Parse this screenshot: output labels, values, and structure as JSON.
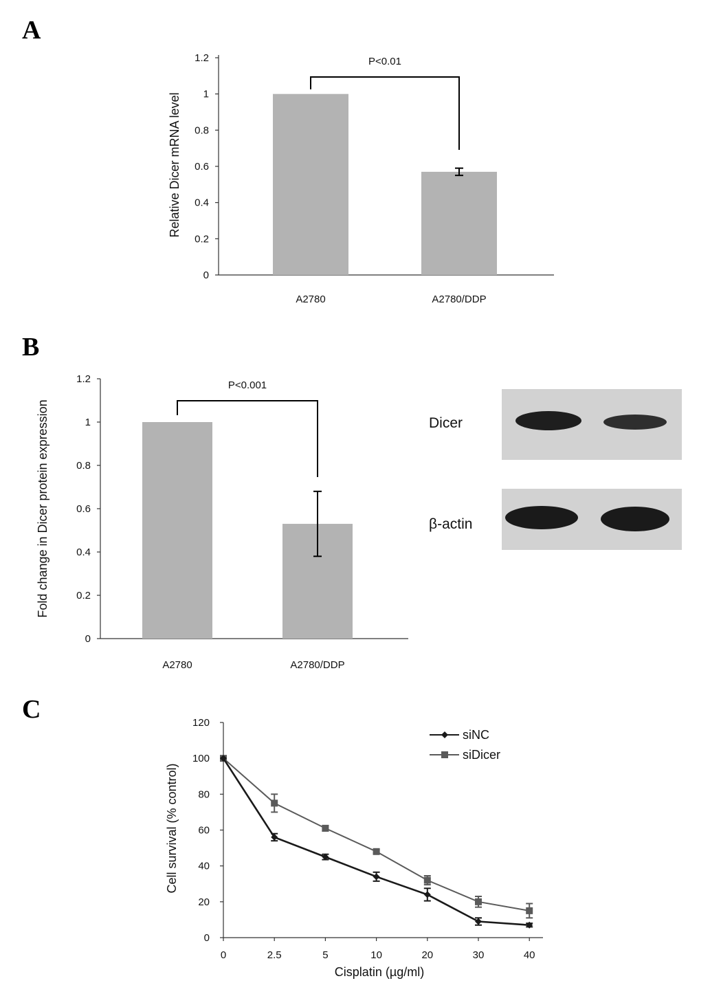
{
  "panels": {
    "a": "A",
    "b": "B",
    "c": "C"
  },
  "colors": {
    "bar": "#b3b3b3",
    "siNC": "#1a1a1a",
    "siDicer": "#5a5a5a",
    "blot_bg": "#d2d2d2",
    "band": "#1e1e1e"
  },
  "blot": {
    "labels": [
      "Dicer",
      "β-actin"
    ]
  },
  "chart_data": [
    {
      "type": "bar",
      "categories": [
        "A2780",
        "A2780/DDP"
      ],
      "values": [
        1.0,
        0.57
      ],
      "errors": [
        0,
        0.02
      ],
      "ylabel": "Relative Dicer mRNA level",
      "xlabel": "",
      "ylim": [
        0,
        1.2
      ],
      "yticks": [
        "0",
        "0.2",
        "0.4",
        "0.6",
        "0.8",
        "1",
        "1.2"
      ],
      "annotation": "P<0.01"
    },
    {
      "type": "bar",
      "categories": [
        "A2780",
        "A2780/DDP"
      ],
      "values": [
        1.0,
        0.53
      ],
      "errors": [
        0,
        0.15
      ],
      "ylabel": "Fold change in Dicer protein expression",
      "xlabel": "",
      "ylim": [
        0,
        1.2
      ],
      "yticks": [
        "0",
        "0.2",
        "0.4",
        "0.6",
        "0.8",
        "1",
        "1.2"
      ],
      "annotation": "P<0.001"
    },
    {
      "type": "line",
      "x": [
        "0",
        "2.5",
        "5",
        "10",
        "20",
        "30",
        "40"
      ],
      "series": [
        {
          "name": "siNC",
          "values": [
            100,
            56,
            45,
            34,
            24,
            9,
            7
          ],
          "errors": [
            0,
            2,
            1.5,
            2.5,
            3.5,
            2,
            1
          ],
          "marker": "diamond"
        },
        {
          "name": "siDicer",
          "values": [
            100,
            75,
            61,
            48,
            32,
            20,
            15
          ],
          "errors": [
            0,
            5,
            1.5,
            1,
            2.5,
            3,
            4
          ],
          "marker": "square"
        }
      ],
      "xlabel": "Cisplatin (µg/ml)",
      "ylabel": "Cell survival (% control)",
      "ylim": [
        0,
        120
      ],
      "yticks": [
        "0",
        "20",
        "40",
        "60",
        "80",
        "100",
        "120"
      ],
      "legend": "top-right"
    }
  ]
}
